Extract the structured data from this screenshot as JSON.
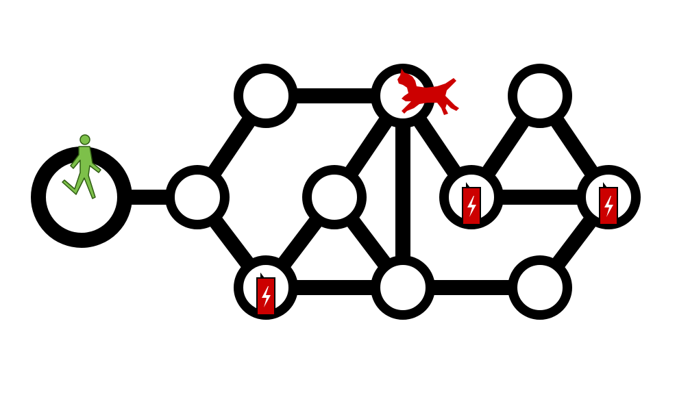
{
  "game": {
    "colors": {
      "background": "#ffffff",
      "edge": "#000000",
      "node_fill": "#ffffff",
      "node_ring": "#000000",
      "player": "#7dc04a",
      "enemy": "#cc0000",
      "battery": "#cc0000"
    },
    "nodes": [
      {
        "id": "start",
        "role": "start"
      },
      {
        "id": "n1"
      },
      {
        "id": "n2"
      },
      {
        "id": "n3"
      },
      {
        "id": "n4"
      },
      {
        "id": "n5"
      },
      {
        "id": "n6"
      },
      {
        "id": "n7"
      },
      {
        "id": "n8"
      },
      {
        "id": "n9"
      },
      {
        "id": "n10"
      },
      {
        "id": "n11"
      }
    ],
    "edges": [
      [
        "start",
        "n1"
      ],
      [
        "n1",
        "n2"
      ],
      [
        "n1",
        "n3"
      ],
      [
        "n2",
        "n4"
      ],
      [
        "n3",
        "n7"
      ],
      [
        "n3",
        "n8"
      ],
      [
        "n4",
        "n5"
      ],
      [
        "n4",
        "n6"
      ],
      [
        "n4",
        "n8"
      ],
      [
        "n5",
        "n9"
      ],
      [
        "n5",
        "n10"
      ],
      [
        "n6",
        "n7"
      ],
      [
        "n6",
        "n8"
      ],
      [
        "n8",
        "n11"
      ],
      [
        "n9",
        "n10"
      ],
      [
        "n10",
        "n11"
      ]
    ],
    "pieces": {
      "player": {
        "node": "start",
        "icon": "walking-person-icon"
      },
      "enemy": {
        "node": "n4",
        "icon": "dog-icon"
      },
      "batteries": [
        {
          "node": "n3",
          "icon": "battery-icon"
        },
        {
          "node": "n9",
          "icon": "battery-icon"
        },
        {
          "node": "n10",
          "icon": "battery-icon"
        }
      ]
    }
  }
}
